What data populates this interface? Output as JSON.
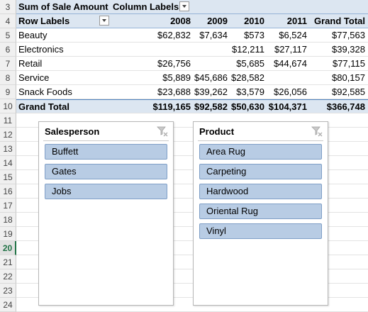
{
  "pivot": {
    "corner_label": "Sum of Sale Amount",
    "column_labels": "Column Labels",
    "row_labels": "Row Labels",
    "years": [
      "2008",
      "2009",
      "2010",
      "2011"
    ],
    "grand_total_label": "Grand Total",
    "rows": [
      {
        "label": "Beauty",
        "values": [
          "$62,832",
          "$7,634",
          "$573",
          "$6,524"
        ],
        "total": "$77,563"
      },
      {
        "label": "Electronics",
        "values": [
          "",
          "",
          "$12,211",
          "$27,117"
        ],
        "total": "$39,328"
      },
      {
        "label": "Retail",
        "values": [
          "$26,756",
          "",
          "$5,685",
          "$44,674"
        ],
        "total": "$77,115"
      },
      {
        "label": "Service",
        "values": [
          "$5,889",
          "$45,686",
          "$28,582",
          ""
        ],
        "total": "$80,157"
      },
      {
        "label": "Snack Foods",
        "values": [
          "$23,688",
          "$39,262",
          "$3,579",
          "$26,056"
        ],
        "total": "$92,585"
      }
    ],
    "totals_row": {
      "label": "Grand Total",
      "values": [
        "$119,165",
        "$92,582",
        "$50,630",
        "$104,371"
      ],
      "total": "$366,748"
    }
  },
  "row_numbers": [
    "3",
    "4",
    "5",
    "6",
    "7",
    "8",
    "9",
    "10",
    "11",
    "12",
    "13",
    "14",
    "15",
    "16",
    "17",
    "18",
    "19",
    "20",
    "21",
    "22",
    "23",
    "24"
  ],
  "active_row": "20",
  "slicers": {
    "salesperson": {
      "title": "Salesperson",
      "items": [
        "Buffett",
        "Gates",
        "Jobs"
      ]
    },
    "product": {
      "title": "Product",
      "items": [
        "Area Rug",
        "Carpeting",
        "Hardwood",
        "Oriental Rug",
        "Vinyl"
      ]
    }
  },
  "colors": {
    "pivot_header": "#dce6f1",
    "slicer_item": "#b8cce4",
    "active_row_accent": "#217346"
  },
  "icons": {
    "dropdown": "chevron-down-icon",
    "clear_filter": "clear-filter-icon"
  }
}
